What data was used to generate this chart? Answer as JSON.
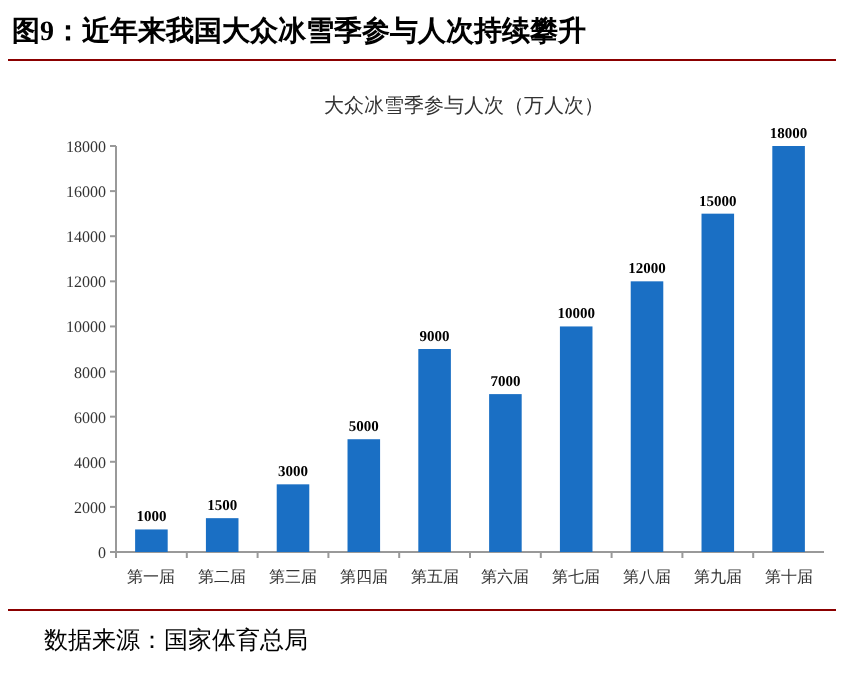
{
  "chart_data": {
    "type": "bar",
    "title": "图9：近年来我国大众冰雪季参与人次持续攀升",
    "subtitle": "大众冰雪季参与人次（万人次）",
    "categories": [
      "第一届",
      "第二届",
      "第三届",
      "第四届",
      "第五届",
      "第六届",
      "第七届",
      "第八届",
      "第九届",
      "第十届"
    ],
    "values": [
      1000,
      1500,
      3000,
      5000,
      9000,
      7000,
      10000,
      12000,
      15000,
      18000
    ],
    "color": "#1a6fc4",
    "ylim": [
      0,
      18000
    ],
    "yticks": [
      0,
      2000,
      4000,
      6000,
      8000,
      10000,
      12000,
      14000,
      16000,
      18000
    ],
    "data_labels": true,
    "grid": false,
    "annotations": [
      "数据来源：国家体育总局"
    ]
  }
}
